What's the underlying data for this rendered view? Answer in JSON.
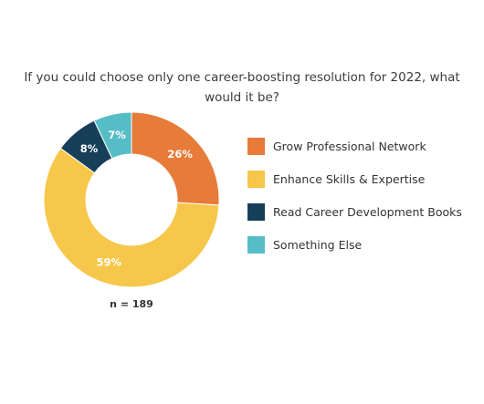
{
  "chart_data": {
    "type": "pie",
    "style": "donut",
    "title": "If you could choose only one career-boosting resolution for 2022, what would it be?",
    "title_lines": [
      "If you could choose only one career-boosting resolution for 2022, what",
      "would it be?"
    ],
    "categories": [
      "Grow Professional Network",
      "Enhance Skills & Expertise",
      "Read Career Development Books",
      "Something Else"
    ],
    "values": [
      26,
      59,
      8,
      7
    ],
    "value_labels": [
      "26%",
      "59%",
      "8%",
      "7%"
    ],
    "colors": [
      "#e77b3a",
      "#f6c74a",
      "#173f5a",
      "#56bdc6"
    ],
    "legend_position": "right",
    "footnote": "n = 189"
  }
}
